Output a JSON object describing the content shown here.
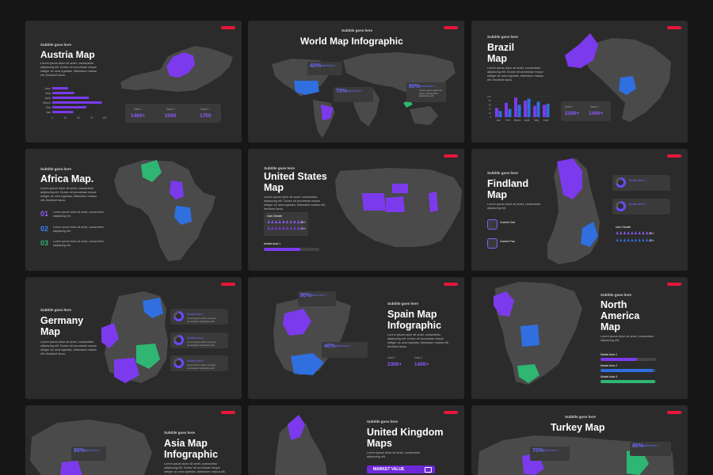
{
  "common": {
    "subtitle": "Subtitle goes here",
    "lorem": "Lorem ipsum dolor sit amet, consectetur adipiscing elit. Donec sit accumsan neque integer ac urna egestas, bibendum massa elit, tincidunt lacus.",
    "lorem_short": "Lorem ipsum dolor sit amet, consectetur adipiscing elit.",
    "market_area": "Market Area 1",
    "colors": {
      "purple": "#7c3aed",
      "blue": "#2f6fe0",
      "green": "#2fb673",
      "red": "#e8173a",
      "land": "#4a4a4a"
    }
  },
  "austria": {
    "title": "Austria Map",
    "months": [
      "June",
      "May",
      "April",
      "March",
      "Feb",
      "Jan"
    ],
    "values": [
      30,
      42,
      70,
      95,
      65,
      40
    ],
    "ticks": [
      "0",
      "25",
      "50",
      "75",
      "100"
    ],
    "stats": [
      {
        "label": "Data 1",
        "value": "1400+"
      },
      {
        "label": "Data 2",
        "value": "2500"
      },
      {
        "label": "Data 3",
        "value": "1750"
      }
    ]
  },
  "world": {
    "title": "World Map Infographic",
    "callouts": [
      {
        "pct": "40%",
        "title": "Market Area 1"
      },
      {
        "pct": "70%",
        "title": "Market Area 2"
      },
      {
        "pct": "80%",
        "title": "Market Area 3"
      }
    ]
  },
  "brazil": {
    "title1": "Brazil",
    "title2": "Map",
    "months": [
      "Jan",
      "Feb",
      "March",
      "April",
      "May",
      "June"
    ],
    "values": [
      [
        45,
        30
      ],
      [
        70,
        40
      ],
      [
        95,
        60
      ],
      [
        80,
        90
      ],
      [
        55,
        75
      ],
      [
        60,
        65
      ]
    ],
    "ticks": [
      "0",
      "20",
      "40",
      "60",
      "80",
      "100"
    ],
    "stats": [
      {
        "label": "Data 1",
        "value": "2300+"
      },
      {
        "label": "Data 2",
        "value": "1400+"
      }
    ]
  },
  "africa": {
    "title": "Africa Map.",
    "items": [
      {
        "num": "01",
        "color": "#8b5cf6"
      },
      {
        "num": "02",
        "color": "#3b82f6"
      },
      {
        "num": "03",
        "color": "#2fb673"
      }
    ]
  },
  "usa": {
    "title1": "United States",
    "title2": "Map",
    "user_gender": "User Gender",
    "pct_a": "80%",
    "pct_b": "60%"
  },
  "finland": {
    "title1": "Findland",
    "title2": "Map",
    "items": [
      "Content One",
      "Content Two"
    ],
    "boxes": [
      "Market Area 1",
      "Market Area 2"
    ],
    "user_gender": "User Gender",
    "pct_a": "80%",
    "pct_b": "60%"
  },
  "germany": {
    "title1": "Germany",
    "title2": "Map",
    "boxes": [
      "Market Area 1",
      "Market Area 2",
      "Market Area 3"
    ]
  },
  "spain": {
    "title1": "Spain Map",
    "title2": "Infographic",
    "callouts": [
      {
        "pct": "80%",
        "title": "Market Area 1"
      },
      {
        "pct": "40%",
        "title": "Market Area 2"
      }
    ],
    "stats": [
      {
        "label": "Data 1",
        "value": "2300+"
      },
      {
        "label": "Data 2",
        "value": "1400+"
      }
    ]
  },
  "namerica": {
    "title1": "North",
    "title2": "America",
    "title3": "Map",
    "bars": [
      {
        "label": "Market Area 1",
        "fill": 0.65,
        "color": "#7c3aed"
      },
      {
        "label": "Market Area 2",
        "fill": 0.95,
        "color": "#2f6fe0"
      },
      {
        "label": "Market Area 3",
        "fill": 0.98,
        "color": "#2fb673"
      }
    ]
  },
  "asia": {
    "title1": "Asia Map",
    "title2": "Infographic",
    "callout": {
      "pct": "80%",
      "title": "Market Area 1"
    }
  },
  "uk": {
    "title1": "United Kingdom",
    "title2": "Maps",
    "button": "MARKET VALUE"
  },
  "turkey": {
    "title": "Turkey Map",
    "callouts": [
      {
        "pct": "70%",
        "title": "Market Area 1"
      },
      {
        "pct": "80%",
        "title": "Market Area 2"
      }
    ]
  }
}
